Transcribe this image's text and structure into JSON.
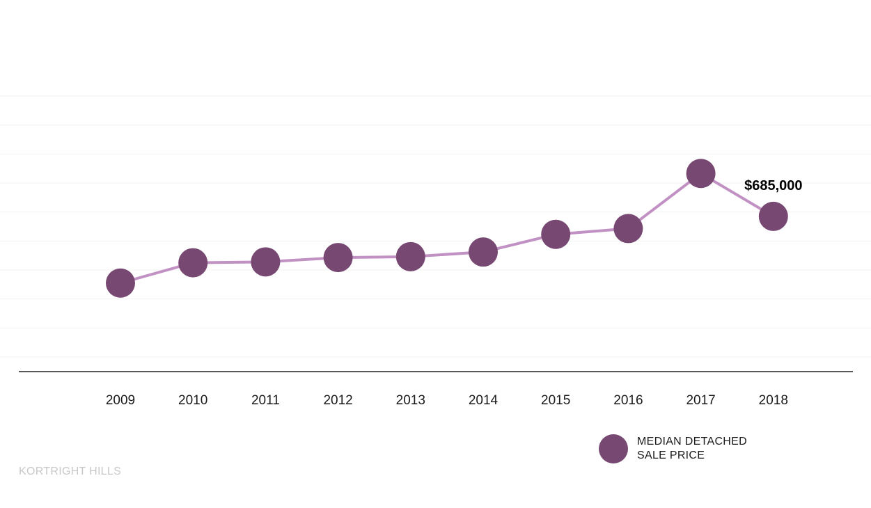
{
  "chart_data": {
    "type": "line",
    "categories": [
      "2009",
      "2010",
      "2011",
      "2012",
      "2013",
      "2014",
      "2015",
      "2016",
      "2017",
      "2018"
    ],
    "series": [
      {
        "name": "MEDIAN DETACHED SALE PRICE",
        "values": [
          455000,
          525000,
          528000,
          543000,
          546000,
          562000,
          623000,
          643000,
          833000,
          685000
        ]
      }
    ],
    "annotations": [
      {
        "category": "2018",
        "text": "$685,000"
      }
    ],
    "legend": {
      "label": "MEDIAN DETACHED SALE PRICE",
      "placement": "bottom-right"
    },
    "grid": true,
    "ylim": [
      200000,
      1100000
    ],
    "colors": {
      "marker": "#764872",
      "line": "#c291c3",
      "grid": "#f3f3f3",
      "axis": "#222222"
    }
  },
  "watermark": "KORTRIGHT HILLS"
}
